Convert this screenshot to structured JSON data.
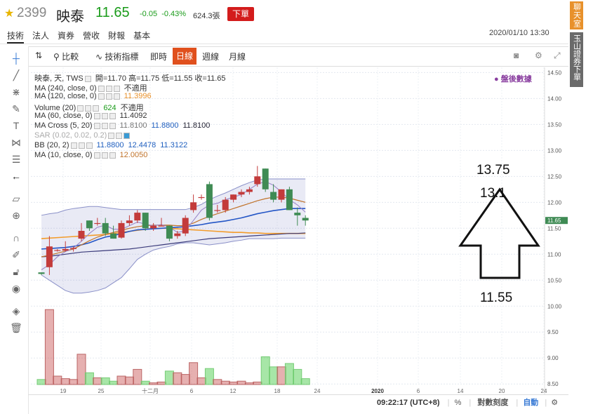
{
  "header": {
    "code": "2399",
    "name": "映泰",
    "price": "11.65",
    "change": "-0.05",
    "change_pct": "-0.43%",
    "volume": "624.3張",
    "order_label": "下單",
    "datetime": "2020/01/10 13:30",
    "tabs": [
      "技術",
      "法人",
      "資券",
      "營收",
      "財報",
      "基本"
    ]
  },
  "side": {
    "chat": "聊天室",
    "esun": "玉山證券下單"
  },
  "toolbar": {
    "compare": "比較",
    "indicators": "技術指標",
    "intraday": "即時",
    "day": "日線",
    "week": "週線",
    "month": "月線"
  },
  "legend": {
    "main": {
      "label": "映泰, 天, TWS",
      "open": "開=11.70",
      "high": "高=11.75",
      "low": "低=11.55",
      "close": "收=11.65"
    },
    "ma240": {
      "label": "MA (240, close, 0)",
      "value": "不適用"
    },
    "ma120": {
      "label": "MA (120, close, 0)",
      "value": "11.3996"
    },
    "volume": {
      "label": "Volume (20)",
      "v1": "624",
      "v2": "不適用"
    },
    "ma60": {
      "label": "MA (60, close, 0)",
      "value": "11.4092"
    },
    "macross": {
      "label": "MA Cross (5, 20)",
      "v1": "11.8100",
      "v2": "11.8800",
      "v3": "11.8100"
    },
    "sar": {
      "label": "SAR (0.02, 0.02, 0.2)"
    },
    "bb": {
      "label": "BB (20, 2)",
      "v1": "11.8800",
      "v2": "12.4478",
      "v3": "11.3122"
    },
    "ma10": {
      "label": "MA (10, close, 0)",
      "value": "12.0050"
    }
  },
  "after_hours": "盤後數據",
  "annotations": {
    "top": "13.75",
    "mid": "13.1",
    "bottom": "11.55"
  },
  "y_axis": [
    "14.50",
    "14.00",
    "13.50",
    "13.00",
    "12.50",
    "12.00",
    "11.50",
    "11.00",
    "10.50",
    "10.00",
    "9.50",
    "9.00",
    "8.50"
  ],
  "price_tag": "11.65",
  "x_axis": [
    "19",
    "25",
    "十二月",
    "6",
    "12",
    "18",
    "24",
    "2020",
    "6",
    "14",
    "20",
    "24"
  ],
  "bottom": {
    "time": "09:22:17 (UTC+8)",
    "pct": "%",
    "log": "對數刻度",
    "auto": "自動"
  },
  "colors": {
    "up": "#c33b3b",
    "down": "#3f8b54",
    "accent": "#e0501d"
  },
  "chart_data": {
    "type": "candlestick",
    "candles": [
      {
        "o": 10.65,
        "h": 10.65,
        "l": 10.6,
        "c": 10.62
      },
      {
        "o": 10.75,
        "h": 11.35,
        "l": 10.6,
        "c": 11.15
      },
      {
        "o": 11.08,
        "h": 11.1,
        "l": 11.05,
        "c": 11.08
      },
      {
        "o": 11.07,
        "h": 11.25,
        "l": 11.05,
        "c": 11.1
      },
      {
        "o": 11.1,
        "h": 11.15,
        "l": 11.05,
        "c": 11.12
      },
      {
        "o": 11.3,
        "h": 11.6,
        "l": 11.25,
        "c": 11.45
      },
      {
        "o": 11.65,
        "h": 11.65,
        "l": 11.45,
        "c": 11.5
      },
      {
        "o": 11.6,
        "h": 11.7,
        "l": 11.55,
        "c": 11.6
      },
      {
        "o": 11.6,
        "h": 11.7,
        "l": 11.35,
        "c": 11.4
      },
      {
        "o": 11.4,
        "h": 11.55,
        "l": 11.3,
        "c": 11.3
      },
      {
        "o": 11.32,
        "h": 11.65,
        "l": 11.3,
        "c": 11.6
      },
      {
        "o": 11.6,
        "h": 11.75,
        "l": 11.55,
        "c": 11.65
      },
      {
        "o": 11.65,
        "h": 11.85,
        "l": 11.6,
        "c": 11.8
      },
      {
        "o": 11.8,
        "h": 11.8,
        "l": 11.45,
        "c": 11.5
      },
      {
        "o": 11.5,
        "h": 11.6,
        "l": 11.45,
        "c": 11.55
      },
      {
        "o": 11.55,
        "h": 11.7,
        "l": 11.55,
        "c": 11.55
      },
      {
        "o": 11.55,
        "h": 11.55,
        "l": 11.25,
        "c": 11.3
      },
      {
        "o": 11.35,
        "h": 11.45,
        "l": 11.3,
        "c": 11.4
      },
      {
        "o": 11.4,
        "h": 11.75,
        "l": 11.35,
        "c": 11.7
      },
      {
        "o": 11.85,
        "h": 12.15,
        "l": 11.8,
        "c": 12.0
      },
      {
        "o": 12.1,
        "h": 12.15,
        "l": 12.05,
        "c": 12.1
      },
      {
        "o": 12.35,
        "h": 12.4,
        "l": 11.65,
        "c": 11.7
      },
      {
        "o": 11.85,
        "h": 11.95,
        "l": 11.8,
        "c": 11.85
      },
      {
        "o": 11.85,
        "h": 12.1,
        "l": 11.8,
        "c": 12.05
      },
      {
        "o": 12.05,
        "h": 12.15,
        "l": 12.0,
        "c": 12.15
      },
      {
        "o": 12.15,
        "h": 12.25,
        "l": 12.1,
        "c": 12.2
      },
      {
        "o": 12.2,
        "h": 12.3,
        "l": 12.15,
        "c": 12.25
      },
      {
        "o": 12.35,
        "h": 12.7,
        "l": 12.3,
        "c": 12.5
      },
      {
        "o": 12.65,
        "h": 12.65,
        "l": 12.2,
        "c": 12.25
      },
      {
        "o": 12.2,
        "h": 12.35,
        "l": 12.0,
        "c": 12.05
      },
      {
        "o": 12.05,
        "h": 12.25,
        "l": 12.0,
        "c": 12.25
      },
      {
        "o": 12.25,
        "h": 12.3,
        "l": 11.85,
        "c": 11.85
      },
      {
        "o": 11.8,
        "h": 11.9,
        "l": 11.55,
        "c": 11.75
      },
      {
        "o": 11.7,
        "h": 11.75,
        "l": 11.55,
        "c": 11.65
      }
    ],
    "volumes": [
      0.6,
      8.9,
      1.0,
      0.7,
      0.6,
      3.6,
      1.4,
      0.8,
      0.8,
      0.4,
      1.0,
      0.9,
      1.8,
      0.4,
      0.2,
      0.3,
      1.6,
      1.4,
      1.2,
      2.6,
      0.8,
      1.9,
      0.6,
      0.4,
      0.3,
      0.4,
      0.2,
      0.3,
      3.3,
      2.1,
      2.1,
      2.5,
      1.8,
      0.7
    ],
    "ylim": [
      8.3,
      14.6
    ],
    "vol_ylim": [
      0,
      10
    ],
    "bb_upper": [
      11.75,
      11.78,
      11.8,
      11.85,
      11.88,
      11.9,
      11.92,
      11.92,
      11.9,
      11.88,
      11.86,
      11.86,
      11.86,
      11.86,
      11.86,
      11.86,
      11.86,
      11.86,
      11.86,
      11.9,
      11.96,
      12.05,
      12.12,
      12.18,
      12.25,
      12.32,
      12.38,
      12.43,
      12.45,
      12.45,
      12.45,
      12.45,
      12.45,
      12.45
    ],
    "bb_lower": [
      10.6,
      10.5,
      10.4,
      10.3,
      10.25,
      10.25,
      10.27,
      10.3,
      10.35,
      10.45,
      10.55,
      10.72,
      10.9,
      11.0,
      11.08,
      11.12,
      11.15,
      11.2,
      11.22,
      11.22,
      11.2,
      11.18,
      11.2,
      11.22,
      11.25,
      11.27,
      11.3,
      11.3,
      11.3,
      11.3,
      11.31,
      11.31,
      11.31,
      11.31
    ],
    "ma60": [
      10.95,
      10.96,
      10.98,
      11.0,
      11.02,
      11.04,
      11.05,
      11.06,
      11.07,
      11.08,
      11.09,
      11.1,
      11.12,
      11.14,
      11.16,
      11.18,
      11.2,
      11.22,
      11.24,
      11.26,
      11.28,
      11.3,
      11.31,
      11.32,
      11.33,
      11.34,
      11.35,
      11.36,
      11.37,
      11.38,
      11.39,
      11.4,
      11.4,
      11.41
    ],
    "ma120": [
      11.3,
      11.31,
      11.32,
      11.33,
      11.34,
      11.35,
      11.36,
      11.37,
      11.38,
      11.4,
      11.42,
      11.44,
      11.46,
      11.48,
      11.5,
      11.5,
      11.5,
      11.49,
      11.48,
      11.47,
      11.46,
      11.45,
      11.44,
      11.43,
      11.42,
      11.42,
      11.41,
      11.41,
      11.4,
      11.4,
      11.4,
      11.4,
      11.4,
      11.4
    ],
    "ma20": [
      11.1,
      11.11,
      11.12,
      11.13,
      11.15,
      11.18,
      11.22,
      11.28,
      11.33,
      11.36,
      11.4,
      11.44,
      11.47,
      11.48,
      11.49,
      11.5,
      11.51,
      11.52,
      11.53,
      11.55,
      11.57,
      11.6,
      11.62,
      11.64,
      11.67,
      11.7,
      11.74,
      11.78,
      11.81,
      11.84,
      11.86,
      11.88,
      11.88,
      11.88
    ],
    "ma10": [
      10.95,
      10.98,
      11.02,
      11.06,
      11.1,
      11.18,
      11.26,
      11.33,
      11.38,
      11.42,
      11.46,
      11.5,
      11.53,
      11.55,
      11.56,
      11.56,
      11.56,
      11.55,
      11.55,
      11.6,
      11.67,
      11.73,
      11.78,
      11.83,
      11.88,
      11.93,
      11.98,
      12.03,
      12.07,
      12.1,
      12.1,
      12.08,
      12.04,
      12.0
    ],
    "ma5": [
      10.7,
      10.8,
      10.95,
      11.05,
      11.12,
      11.25,
      11.4,
      11.52,
      11.56,
      11.48,
      11.48,
      11.55,
      11.62,
      11.58,
      11.55,
      11.57,
      11.52,
      11.42,
      11.45,
      11.65,
      11.85,
      11.95,
      11.98,
      12.05,
      12.1,
      12.15,
      12.25,
      12.35,
      12.4,
      12.33,
      12.2,
      12.05,
      11.95,
      11.81
    ]
  }
}
